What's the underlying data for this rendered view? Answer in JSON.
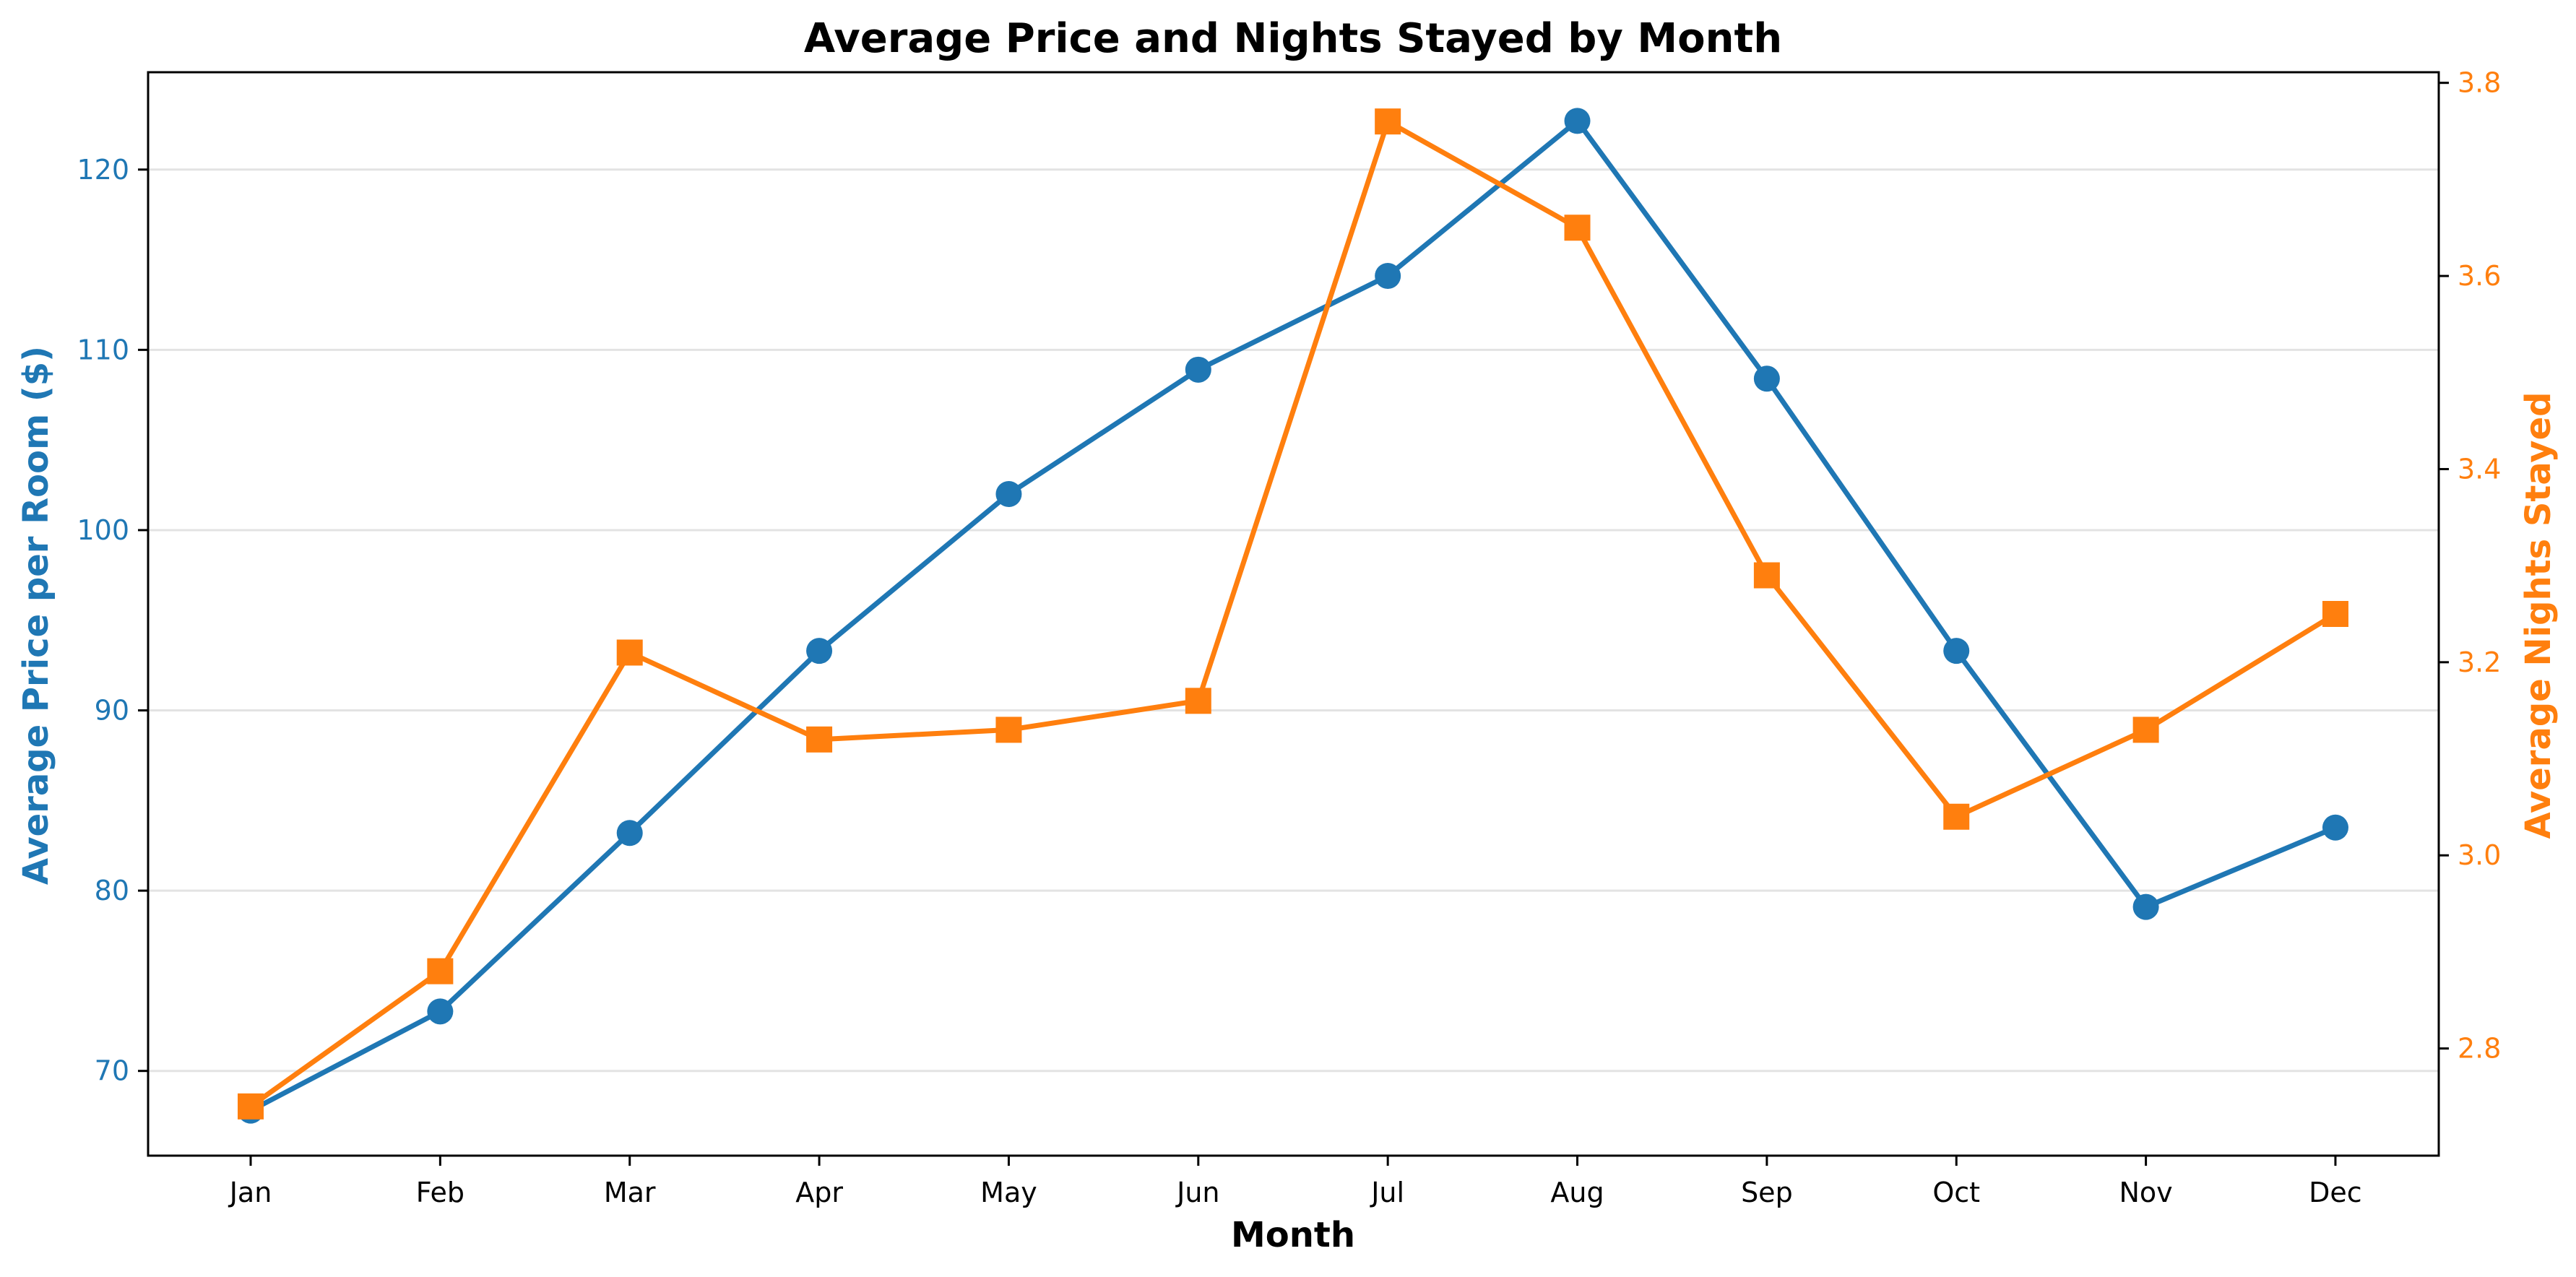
{
  "chart_data": {
    "type": "line",
    "title": "Average Price and Nights Stayed by Month",
    "xlabel": "Month",
    "categories": [
      "Jan",
      "Feb",
      "Mar",
      "Apr",
      "May",
      "Jun",
      "Jul",
      "Aug",
      "Sep",
      "Oct",
      "Nov",
      "Dec"
    ],
    "series": [
      {
        "name": "Average Price per Room ($)",
        "axis": "left",
        "marker": "circle",
        "color": "#1f77b4",
        "values": [
          67.8,
          73.3,
          83.2,
          93.3,
          102.0,
          108.9,
          114.1,
          122.7,
          108.4,
          93.3,
          79.1,
          83.5
        ]
      },
      {
        "name": "Average Nights Stayed",
        "axis": "right",
        "marker": "square",
        "color": "#ff7f0e",
        "values": [
          2.74,
          2.88,
          3.21,
          3.12,
          3.13,
          3.16,
          3.76,
          3.65,
          3.29,
          3.04,
          3.13,
          3.25
        ]
      }
    ],
    "y_left": {
      "label": "Average Price per Room ($)",
      "ylim": [
        65.3,
        125.4
      ],
      "ticks": [
        70,
        80,
        90,
        100,
        110,
        120
      ],
      "color": "#1f77b4"
    },
    "y_right": {
      "label": "Average Nights Stayed",
      "ylim": [
        2.689,
        3.811
      ],
      "ticks": [
        "2.8",
        "3.0",
        "3.2",
        "3.4",
        "3.6",
        "3.8"
      ],
      "color": "#ff7f0e"
    },
    "grid": "horizontal",
    "legend": "none"
  }
}
